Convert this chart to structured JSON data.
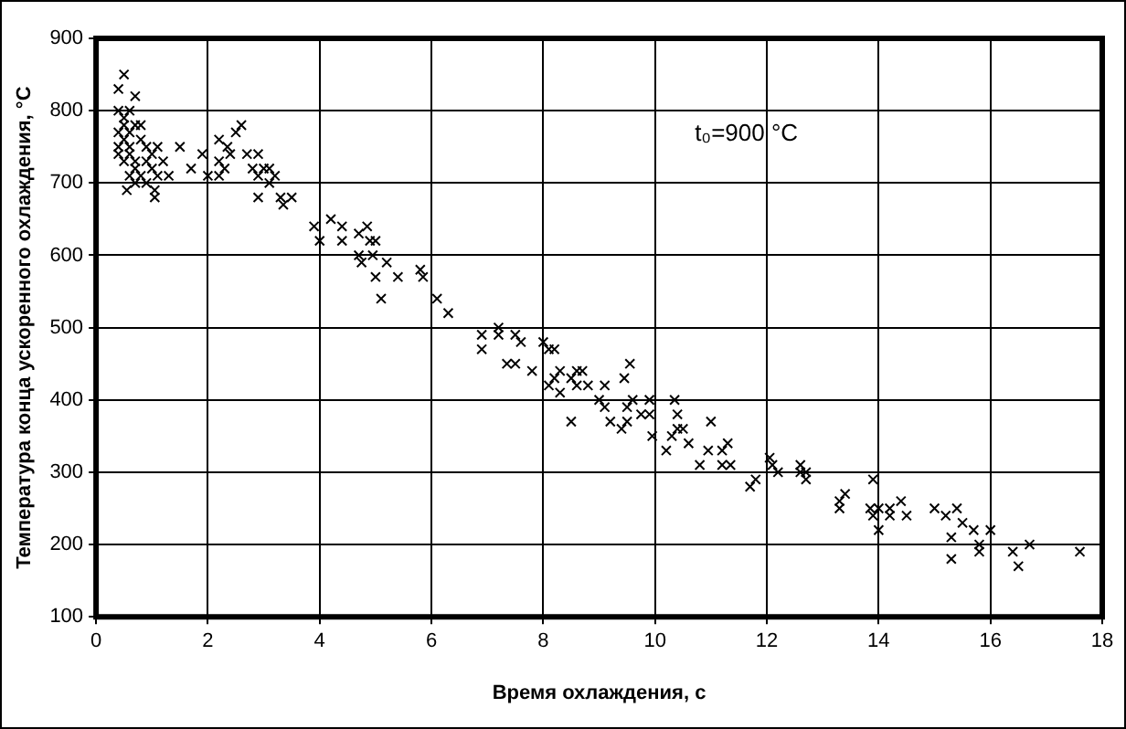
{
  "chart_data": {
    "type": "scatter",
    "xlabel": "Время охлаждения, с",
    "ylabel": "Температура конца ускоренного охлаждения, °С",
    "annotations": [
      "t₀=900 °С"
    ],
    "xlim": [
      0,
      18
    ],
    "xticks": [
      0,
      2,
      4,
      6,
      8,
      10,
      12,
      14,
      16,
      18
    ],
    "ylim": [
      100,
      900
    ],
    "yticks": [
      100,
      200,
      300,
      400,
      500,
      600,
      700,
      800,
      900
    ],
    "grid": true,
    "legend": false,
    "marker": "cross",
    "series": [
      {
        "color": "#000000",
        "x": [
          0.4,
          0.5,
          0.7,
          0.4,
          0.5,
          0.6,
          0.5,
          0.4,
          0.6,
          0.5,
          0.4,
          0.6,
          0.7,
          0.8,
          0.4,
          0.5,
          0.6,
          0.7,
          0.8,
          0.9,
          0.7,
          0.8,
          0.6,
          0.55,
          0.7,
          0.9,
          1.0,
          1.0,
          1.1,
          1.05,
          1.05,
          1.2,
          0.9,
          1.3,
          1.5,
          1.1,
          1.7,
          1.9,
          2.0,
          2.2,
          2.2,
          2.3,
          2.35,
          2.4,
          2.5,
          2.6,
          2.2,
          2.7,
          2.8,
          2.9,
          2.9,
          2.9,
          3.0,
          3.1,
          3.1,
          3.2,
          3.3,
          3.35,
          3.5,
          3.9,
          4.0,
          4.2,
          4.4,
          4.4,
          4.7,
          4.7,
          4.75,
          4.85,
          4.9,
          4.95,
          5.0,
          5.0,
          5.1,
          5.2,
          5.4,
          5.8,
          5.85,
          6.1,
          6.3,
          6.9,
          6.9,
          7.2,
          7.2,
          7.35,
          7.5,
          7.5,
          7.6,
          7.8,
          8.0,
          8.1,
          8.2,
          8.1,
          8.2,
          8.3,
          8.3,
          8.5,
          8.5,
          8.6,
          8.7,
          8.6,
          8.8,
          9.0,
          9.1,
          9.1,
          9.2,
          9.4,
          9.45,
          9.5,
          9.5,
          9.55,
          9.6,
          9.75,
          9.9,
          9.95,
          9.9,
          10.2,
          10.3,
          10.35,
          10.4,
          10.4,
          10.5,
          10.6,
          10.8,
          10.95,
          11.0,
          11.2,
          11.2,
          11.3,
          11.35,
          11.7,
          11.8,
          12.05,
          12.1,
          12.2,
          12.6,
          12.6,
          12.7,
          12.7,
          13.3,
          13.3,
          13.4,
          13.85,
          13.9,
          13.9,
          14.0,
          14.0,
          14.2,
          14.2,
          14.4,
          14.5,
          15.0,
          15.2,
          15.3,
          15.3,
          15.4,
          15.5,
          15.7,
          15.8,
          15.8,
          16.0,
          16.4,
          16.5,
          16.7,
          17.6
        ],
        "values": [
          830,
          850,
          820,
          800,
          790,
          800,
          780,
          770,
          770,
          760,
          750,
          750,
          780,
          780,
          740,
          730,
          740,
          730,
          760,
          750,
          720,
          710,
          710,
          690,
          700,
          700,
          720,
          740,
          750,
          690,
          680,
          730,
          730,
          710,
          750,
          710,
          720,
          740,
          710,
          760,
          730,
          720,
          750,
          740,
          770,
          780,
          710,
          740,
          720,
          740,
          710,
          680,
          720,
          720,
          700,
          710,
          680,
          670,
          680,
          640,
          620,
          650,
          640,
          620,
          630,
          600,
          590,
          640,
          620,
          600,
          620,
          570,
          540,
          590,
          570,
          580,
          570,
          540,
          520,
          490,
          470,
          500,
          490,
          450,
          450,
          490,
          480,
          440,
          480,
          470,
          470,
          420,
          430,
          440,
          410,
          370,
          430,
          440,
          440,
          420,
          420,
          400,
          420,
          390,
          370,
          360,
          430,
          390,
          370,
          450,
          400,
          380,
          400,
          350,
          380,
          330,
          350,
          400,
          380,
          360,
          360,
          340,
          310,
          330,
          370,
          310,
          330,
          340,
          310,
          280,
          290,
          320,
          310,
          300,
          310,
          300,
          290,
          300,
          260,
          250,
          270,
          250,
          290,
          240,
          250,
          220,
          250,
          240,
          260,
          240,
          250,
          240,
          210,
          180,
          250,
          230,
          220,
          200,
          190,
          220,
          190,
          170,
          200,
          190
        ]
      }
    ]
  }
}
